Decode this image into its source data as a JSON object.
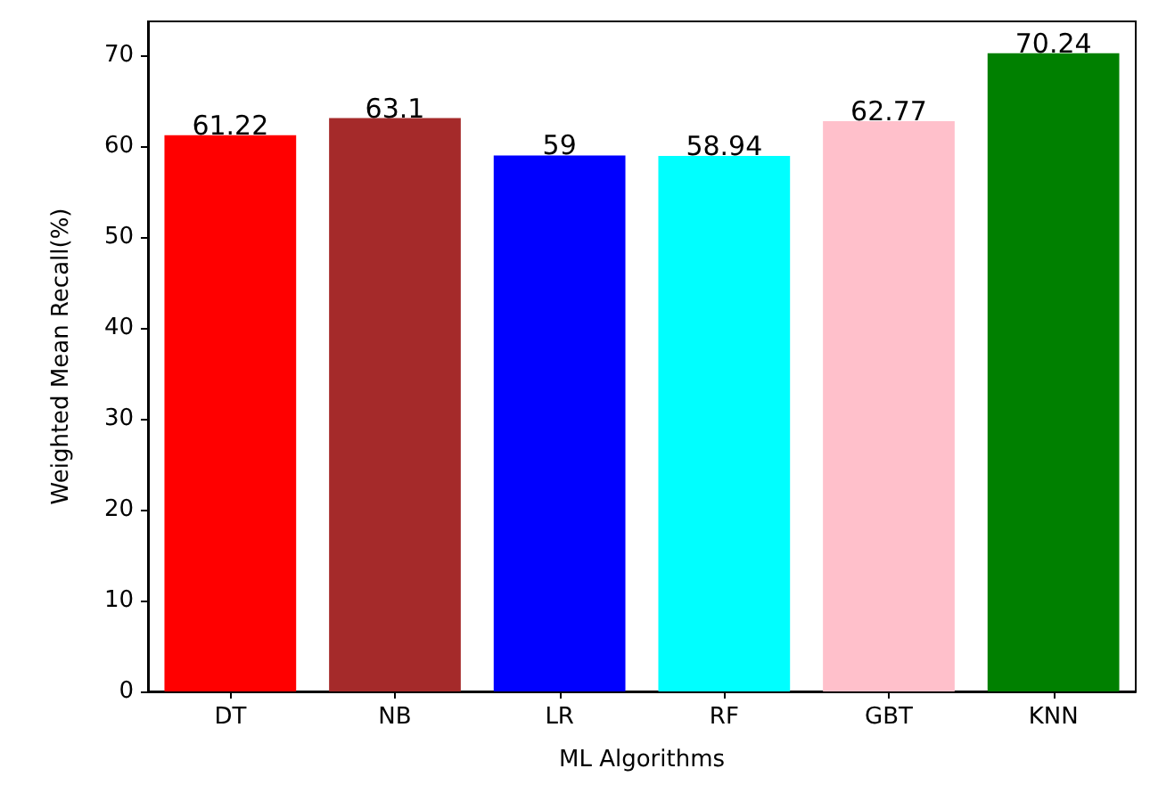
{
  "chart_data": {
    "type": "bar",
    "xlabel": "ML Algorithms",
    "ylabel": "Weighted Mean Recall(%)",
    "categories": [
      "DT",
      "NB",
      "LR",
      "RF",
      "GBT",
      "KNN"
    ],
    "values": [
      61.22,
      63.1,
      59,
      58.94,
      62.77,
      70.24
    ],
    "colors": [
      "#ff0000",
      "#a52a2a",
      "#0000ff",
      "#00ffff",
      "#ffc0cb",
      "#008000"
    ],
    "ylim": [
      0,
      73.75
    ],
    "yticks": [
      0,
      10,
      20,
      30,
      40,
      50,
      60,
      70
    ],
    "data_labels": true,
    "grid": false
  }
}
